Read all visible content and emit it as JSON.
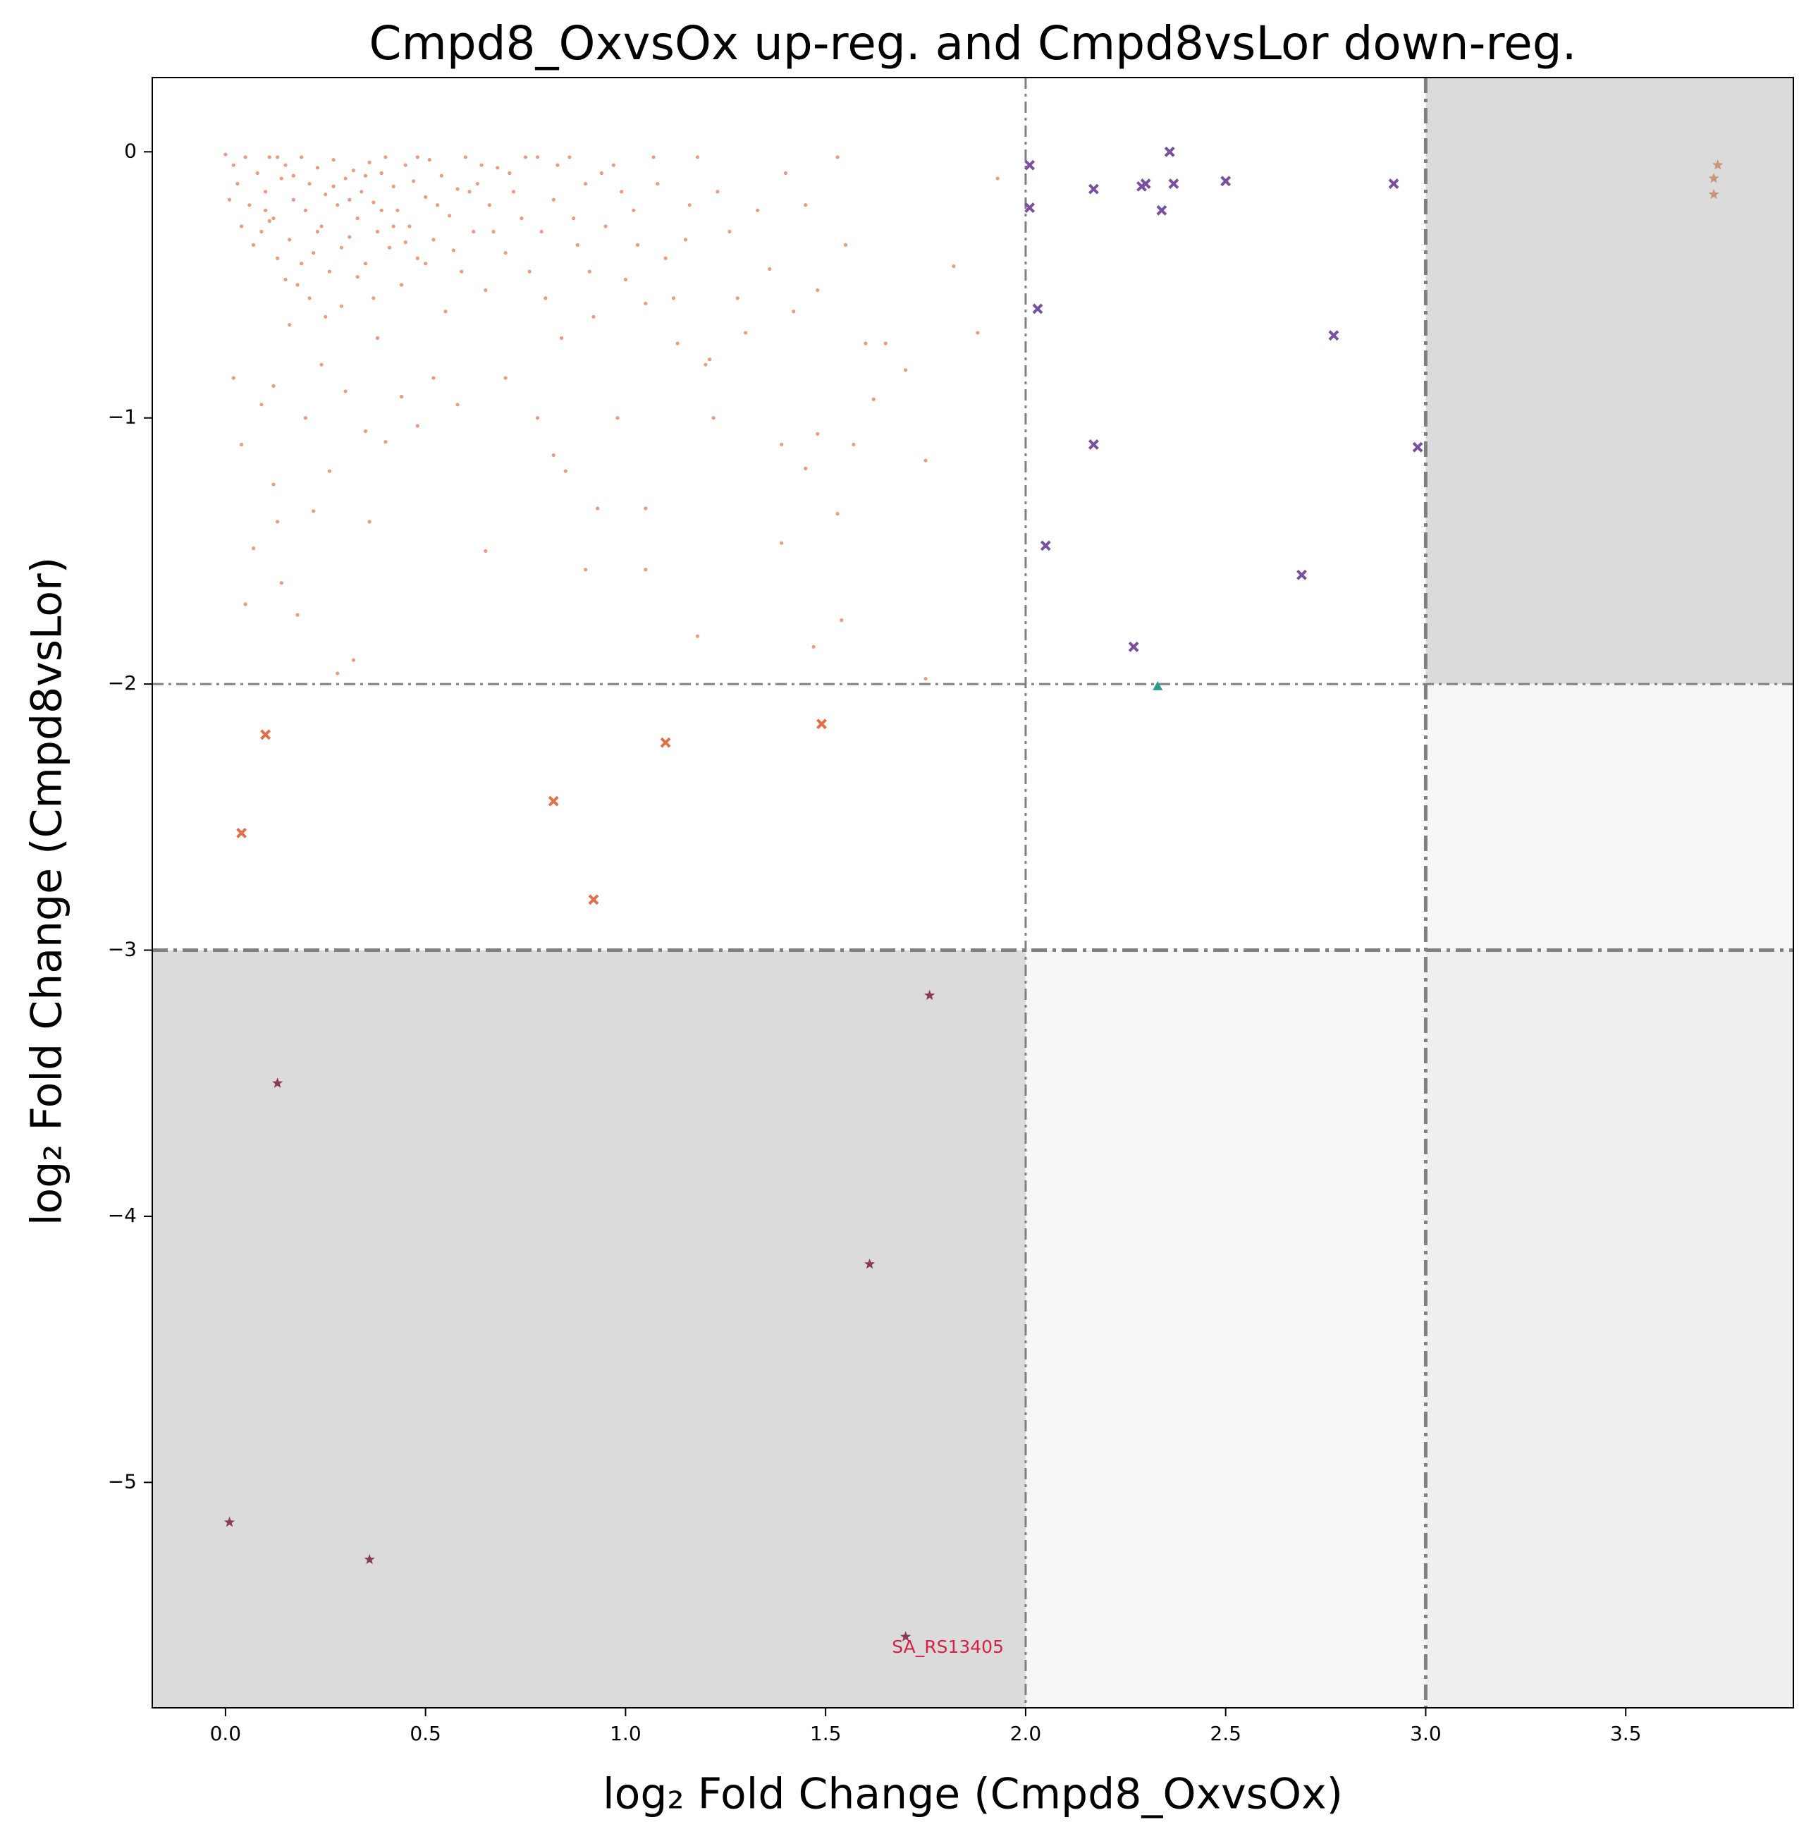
{
  "chart_data": {
    "type": "scatter",
    "title": "Cmpd8_OxvsOx up-reg. and Cmpd8vsLor down-reg.",
    "x_label": "log₂ Fold Change (Cmpd8_OxvsOx)",
    "y_label": "log₂ Fold Change (Cmpd8vsLor)",
    "xlim": [
      -0.183,
      3.919
    ],
    "ylim": [
      -5.847,
      0.279
    ],
    "xticks": [
      {
        "value": 0,
        "label": "0.0"
      },
      {
        "value": 0.5,
        "label": "0.5"
      },
      {
        "value": 1,
        "label": "1.0"
      },
      {
        "value": 1.5,
        "label": "1.5"
      },
      {
        "value": 2,
        "label": "2.0"
      },
      {
        "value": 2.5,
        "label": "2.5"
      },
      {
        "value": 3,
        "label": "3.0"
      },
      {
        "value": 3.5,
        "label": "3.5"
      }
    ],
    "yticks": [
      {
        "value": -5,
        "label": "−5"
      },
      {
        "value": -4,
        "label": "−4"
      },
      {
        "value": -3,
        "label": "−3"
      },
      {
        "value": -2,
        "label": "−2"
      },
      {
        "value": -1,
        "label": "−1"
      },
      0
    ],
    "vlines": [
      2,
      3
    ],
    "hlines": [
      -2,
      -3
    ],
    "series": [
      {
        "marker": "dot",
        "color": "#e2724a",
        "x": [
          0.0,
          0.02,
          0.03,
          0.05,
          0.06,
          0.08,
          0.09,
          0.1,
          0.11,
          0.12,
          0.13,
          0.14,
          0.15,
          0.16,
          0.17,
          0.18,
          0.19,
          0.2,
          0.21,
          0.22,
          0.23,
          0.24,
          0.25,
          0.26,
          0.27,
          0.28,
          0.29,
          0.3,
          0.31,
          0.32,
          0.33,
          0.34,
          0.35,
          0.36,
          0.37,
          0.38,
          0.39,
          0.4,
          0.41,
          0.42,
          0.43,
          0.44,
          0.45,
          0.46,
          0.47,
          0.48,
          0.5,
          0.51,
          0.52,
          0.54,
          0.55,
          0.56,
          0.58,
          0.59,
          0.6,
          0.62,
          0.63,
          0.65,
          0.66,
          0.68,
          0.7,
          0.72,
          0.74,
          0.76,
          0.78,
          0.8,
          0.82,
          0.84,
          0.86,
          0.88,
          0.9,
          0.92,
          0.95,
          0.97,
          1.0,
          1.02,
          1.05,
          1.08,
          1.1,
          1.13,
          1.15,
          1.18,
          1.2,
          1.23,
          1.26,
          1.28,
          1.3,
          1.33,
          1.36,
          1.4,
          1.42,
          1.45,
          1.48,
          1.53,
          1.55,
          1.6,
          1.65,
          1.7,
          1.82,
          1.88,
          1.93,
          0.02,
          0.04,
          0.05,
          0.07,
          0.09,
          0.12,
          0.14,
          0.16,
          0.18,
          0.2,
          0.22,
          0.24,
          0.26,
          0.28,
          0.3,
          0.32,
          0.35,
          0.38,
          0.4,
          0.44,
          0.48,
          0.52,
          0.58,
          0.65,
          0.7,
          0.78,
          0.82,
          0.85,
          0.9,
          0.93,
          0.98,
          1.05,
          1.05,
          1.18,
          1.22,
          1.39,
          1.39,
          1.45,
          1.47,
          1.48,
          1.53,
          1.54,
          1.57,
          1.75,
          1.75,
          1.62,
          1.21,
          0.13,
          0.36,
          0.12,
          0.01,
          0.04,
          0.07,
          0.1,
          0.11,
          0.13,
          0.15,
          0.17,
          0.19,
          0.21,
          0.23,
          0.25,
          0.27,
          0.29,
          0.31,
          0.33,
          0.35,
          0.37,
          0.39,
          0.42,
          0.45,
          0.48,
          0.5,
          0.53,
          0.57,
          0.61,
          0.64,
          0.67,
          0.71,
          0.75,
          0.79,
          0.83,
          0.87,
          0.91,
          0.94,
          0.99,
          1.03,
          1.07,
          1.12,
          1.16
        ],
        "values": [
          -0.01,
          -0.05,
          -0.12,
          -0.02,
          -0.2,
          -0.08,
          -0.3,
          -0.15,
          -0.02,
          -0.25,
          -0.4,
          -0.1,
          -0.05,
          -0.33,
          -0.18,
          -0.5,
          -0.02,
          -0.22,
          -0.12,
          -0.38,
          -0.06,
          -0.28,
          -0.16,
          -0.45,
          -0.03,
          -0.2,
          -0.58,
          -0.1,
          -0.32,
          -0.07,
          -0.25,
          -0.15,
          -0.42,
          -0.04,
          -0.19,
          -0.3,
          -0.08,
          -0.02,
          -0.36,
          -0.13,
          -0.22,
          -0.5,
          -0.05,
          -0.28,
          -0.11,
          -0.4,
          -0.17,
          -0.03,
          -0.33,
          -0.09,
          -0.6,
          -0.24,
          -0.14,
          -0.45,
          -0.02,
          -0.3,
          -0.12,
          -0.52,
          -0.2,
          -0.06,
          -0.38,
          -0.15,
          -0.25,
          -0.45,
          -0.02,
          -0.55,
          -0.18,
          -0.7,
          -0.02,
          -0.35,
          -0.12,
          -0.62,
          -0.28,
          -0.05,
          -0.48,
          -0.22,
          -0.57,
          -0.12,
          -0.4,
          -0.72,
          -0.33,
          -0.02,
          -0.8,
          -0.15,
          -0.3,
          -0.55,
          -0.68,
          -0.22,
          -0.44,
          -0.08,
          -0.6,
          -0.2,
          -0.52,
          -0.02,
          -0.35,
          -0.72,
          -0.72,
          -0.82,
          -0.43,
          -0.68,
          -0.1,
          -0.85,
          -1.1,
          -1.7,
          -1.49,
          -0.95,
          -1.25,
          -1.62,
          -0.65,
          -1.74,
          -1.0,
          -1.35,
          -0.8,
          -1.2,
          -1.96,
          -0.9,
          -1.91,
          -1.05,
          -0.7,
          -1.09,
          -0.92,
          -1.03,
          -0.85,
          -0.95,
          -1.5,
          -0.85,
          -1.0,
          -1.14,
          -1.2,
          -1.57,
          -1.34,
          -1.0,
          -1.57,
          -1.34,
          -1.82,
          -1.0,
          -1.1,
          -1.47,
          -1.19,
          -1.86,
          -1.06,
          -1.36,
          -1.76,
          -1.1,
          -1.16,
          -1.98,
          -0.93,
          -0.78,
          -1.39,
          -1.39,
          -0.88,
          -0.18,
          -0.28,
          -0.35,
          -0.22,
          -0.26,
          -0.02,
          -0.48,
          -0.09,
          -0.42,
          -0.55,
          -0.3,
          -0.62,
          -0.13,
          -0.36,
          -0.18,
          -0.47,
          -0.09,
          -0.55,
          -0.22,
          -0.28,
          -0.34,
          -0.02,
          -0.42,
          -0.2,
          -0.37,
          -0.15,
          -0.05,
          -0.3,
          -0.08,
          -0.02,
          -0.3,
          -0.05,
          -0.25,
          -0.45,
          -0.08,
          -0.15,
          -0.35,
          -0.02,
          -0.55,
          -0.2
        ]
      },
      {
        "marker": "x",
        "color": "#e0704c",
        "x": [
          0.04,
          0.1,
          0.82,
          0.92,
          1.1,
          1.49
        ],
        "values": [
          -2.56,
          -2.19,
          -2.44,
          -2.81,
          -2.22,
          -2.15
        ]
      },
      {
        "marker": "x",
        "color": "#7a4f9e",
        "x": [
          2.01,
          2.01,
          2.03,
          2.05,
          2.17,
          2.17,
          2.27,
          2.29,
          2.3,
          2.34,
          2.36,
          2.37,
          2.5,
          2.69,
          2.77,
          2.92,
          2.98
        ],
        "values": [
          -0.05,
          -0.21,
          -0.59,
          -1.48,
          -0.14,
          -1.1,
          -1.86,
          -0.13,
          -0.12,
          -0.22,
          0.0,
          -0.12,
          -0.11,
          -1.59,
          -0.69,
          -0.12,
          -1.11
        ]
      },
      {
        "marker": "triangle",
        "color": "#2a9d8f",
        "x": [
          2.33
        ],
        "values": [
          -2.01
        ]
      },
      {
        "marker": "star",
        "color": "#8b3a55",
        "x": [
          0.01,
          0.13,
          0.36,
          1.61,
          1.7,
          1.76
        ],
        "values": [
          -5.15,
          -3.5,
          -5.29,
          -4.18,
          -5.58,
          -3.17
        ]
      },
      {
        "marker": "star",
        "color": "#c8957a",
        "x": [
          3.72,
          3.72,
          3.73
        ],
        "values": [
          -0.1,
          -0.16,
          -0.05
        ]
      }
    ],
    "annotations": [
      {
        "text": "SA_RS13405",
        "x": 1.7,
        "y": -5.58,
        "color": "#d6204a"
      }
    ]
  }
}
